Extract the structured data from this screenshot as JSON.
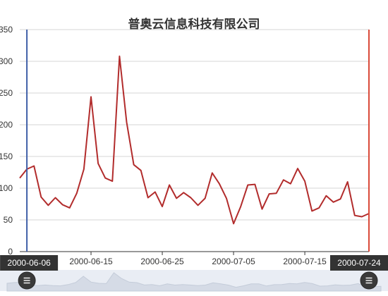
{
  "chart_data": {
    "type": "line",
    "title": "普奥云信息科技有限公司",
    "xlabel": "",
    "ylabel": "",
    "ylim": [
      0,
      350
    ],
    "y_ticks": [
      0,
      50,
      100,
      150,
      200,
      250,
      300,
      350
    ],
    "x_tick_labels": [
      "2000-06-15",
      "2000-06-25",
      "2000-07-05",
      "2000-07-15"
    ],
    "grid": true,
    "x": [
      "2000-06-05",
      "2000-06-06",
      "2000-06-07",
      "2000-06-08",
      "2000-06-09",
      "2000-06-10",
      "2000-06-11",
      "2000-06-12",
      "2000-06-13",
      "2000-06-14",
      "2000-06-15",
      "2000-06-16",
      "2000-06-17",
      "2000-06-18",
      "2000-06-19",
      "2000-06-20",
      "2000-06-21",
      "2000-06-22",
      "2000-06-23",
      "2000-06-24",
      "2000-06-25",
      "2000-06-26",
      "2000-06-27",
      "2000-06-28",
      "2000-06-29",
      "2000-06-30",
      "2000-07-01",
      "2000-07-02",
      "2000-07-03",
      "2000-07-04",
      "2000-07-05",
      "2000-07-06",
      "2000-07-07",
      "2000-07-08",
      "2000-07-09",
      "2000-07-10",
      "2000-07-11",
      "2000-07-12",
      "2000-07-13",
      "2000-07-14",
      "2000-07-15",
      "2000-07-16",
      "2000-07-17",
      "2000-07-18",
      "2000-07-19",
      "2000-07-20",
      "2000-07-21",
      "2000-07-22",
      "2000-07-23",
      "2000-07-24"
    ],
    "series": [
      {
        "values": [
          116,
          130,
          135,
          86,
          73,
          85,
          74,
          69,
          92,
          130,
          244,
          139,
          116,
          111,
          308,
          204,
          137,
          128,
          85,
          94,
          71,
          105,
          84,
          93,
          85,
          73,
          84,
          124,
          107,
          84,
          44,
          71,
          105,
          106,
          67,
          91,
          92,
          113,
          107,
          131,
          111,
          64,
          69,
          88,
          78,
          83,
          110,
          57,
          55,
          60
        ],
        "color": "#b22c2c"
      }
    ],
    "visual_map_markline_colors": [
      "#3f5fa8",
      "#d94a3a"
    ],
    "data_zoom": {
      "start_label": "2000-06-06",
      "end_label": "2000-07-24",
      "start_date": "2000-06-06",
      "end_date": "2000-07-24",
      "handle_icon": "hamburger-handle-icon"
    }
  }
}
